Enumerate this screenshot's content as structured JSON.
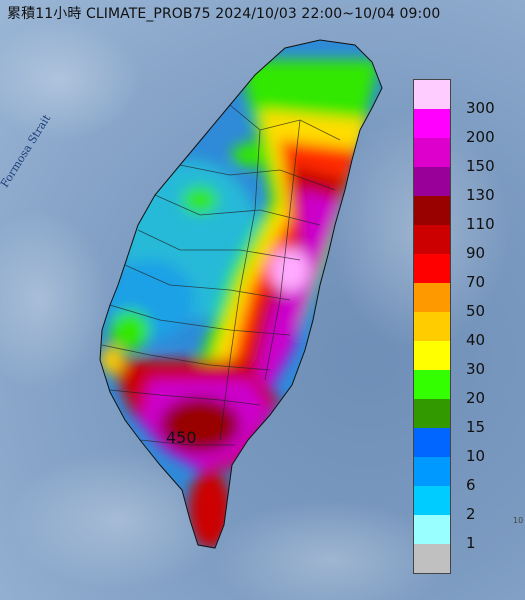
{
  "title": "累積11小時 CLIMATE_PROB75 2024/10/03 22:00~10/04 09:00",
  "sea_label": "Formosa Strait",
  "max_value_label": "450",
  "edge_note": "10",
  "legend": {
    "colors": [
      "#ffccff",
      "#ff00ff",
      "#dd00cc",
      "#990099",
      "#990000",
      "#cc0000",
      "#ff0000",
      "#ff9900",
      "#ffcc00",
      "#ffff00",
      "#33ff00",
      "#339900",
      "#0066ff",
      "#0099ff",
      "#00ccff",
      "#99ffff",
      "#c0c0c0"
    ],
    "labels": [
      "300",
      "200",
      "150",
      "130",
      "110",
      "90",
      "70",
      "50",
      "40",
      "30",
      "20",
      "15",
      "10",
      "6",
      "2",
      "1"
    ]
  }
}
